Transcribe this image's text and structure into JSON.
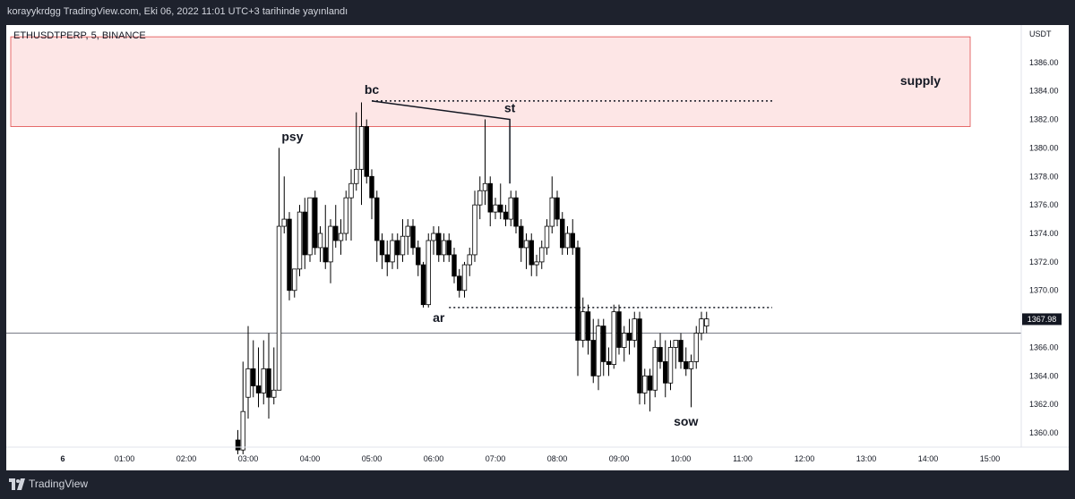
{
  "header": {
    "published_text": "korayykrdgg TradingView.com, Eki 06, 2022 11:01 UTC+3 tarihinde yayınlandı"
  },
  "footer": {
    "brand": "TradingView",
    "logo_icon": "tradingview-logo-icon"
  },
  "colors": {
    "background_dark": "#1e222d",
    "chart_bg": "#ffffff",
    "supply_fill": "#fde6e6",
    "supply_border": "#e04a4a",
    "candle": "#000000"
  },
  "chart_data": {
    "type": "candlestick",
    "symbol_label": "ETHUSDTPERP, 5, BINANCE",
    "currency": "USDT",
    "y_ticks": [
      "1386.00",
      "1384.00",
      "1382.00",
      "1380.00",
      "1378.00",
      "1376.00",
      "1374.00",
      "1372.00",
      "1370.00",
      "1368.00",
      "1366.00",
      "1364.00",
      "1362.00",
      "1360.00"
    ],
    "ylim": [
      1359.0,
      1388.5
    ],
    "x_ticks": [
      "6",
      "01:00",
      "02:00",
      "03:00",
      "04:00",
      "05:00",
      "06:00",
      "07:00",
      "08:00",
      "09:00",
      "10:00",
      "11:00",
      "12:00",
      "13:00",
      "14:00",
      "15:00"
    ],
    "time_scale": {
      "start": "02:50",
      "bar_minutes": 5
    },
    "last_price": "1367.98",
    "candles": [
      {
        "o": 1359.5,
        "h": 1360.2,
        "l": 1358.5,
        "c": 1358.8
      },
      {
        "o": 1358.8,
        "h": 1365.0,
        "l": 1358.5,
        "c": 1361.5
      },
      {
        "o": 1362.5,
        "h": 1367.5,
        "l": 1361.0,
        "c": 1364.5
      },
      {
        "o": 1364.5,
        "h": 1366.5,
        "l": 1362.5,
        "c": 1363.3
      },
      {
        "o": 1363.3,
        "h": 1366.0,
        "l": 1361.8,
        "c": 1362.8
      },
      {
        "o": 1362.8,
        "h": 1366.5,
        "l": 1362.0,
        "c": 1364.5
      },
      {
        "o": 1364.5,
        "h": 1367.0,
        "l": 1361.0,
        "c": 1362.5
      },
      {
        "o": 1362.5,
        "h": 1366.0,
        "l": 1362.0,
        "c": 1363.0
      },
      {
        "o": 1363.0,
        "h": 1380.0,
        "l": 1363.0,
        "c": 1374.5
      },
      {
        "o": 1374.5,
        "h": 1378.0,
        "l": 1374.0,
        "c": 1375.0
      },
      {
        "o": 1375.0,
        "h": 1375.5,
        "l": 1369.3,
        "c": 1370.0
      },
      {
        "o": 1370.0,
        "h": 1371.5,
        "l": 1369.5,
        "c": 1371.5
      },
      {
        "o": 1371.5,
        "h": 1376.0,
        "l": 1371.0,
        "c": 1375.5
      },
      {
        "o": 1375.5,
        "h": 1376.5,
        "l": 1371.5,
        "c": 1372.5
      },
      {
        "o": 1372.5,
        "h": 1376.5,
        "l": 1372.0,
        "c": 1376.5
      },
      {
        "o": 1376.5,
        "h": 1377.0,
        "l": 1372.5,
        "c": 1373.0
      },
      {
        "o": 1373.0,
        "h": 1374.5,
        "l": 1372.0,
        "c": 1374.0
      },
      {
        "o": 1373.0,
        "h": 1376.0,
        "l": 1371.5,
        "c": 1372.0
      },
      {
        "o": 1372.0,
        "h": 1375.0,
        "l": 1370.5,
        "c": 1374.5
      },
      {
        "o": 1374.5,
        "h": 1376.0,
        "l": 1373.0,
        "c": 1373.5
      },
      {
        "o": 1373.5,
        "h": 1375.0,
        "l": 1372.5,
        "c": 1374.0
      },
      {
        "o": 1374.0,
        "h": 1377.0,
        "l": 1373.5,
        "c": 1376.5
      },
      {
        "o": 1376.5,
        "h": 1378.5,
        "l": 1373.5,
        "c": 1377.5
      },
      {
        "o": 1377.5,
        "h": 1382.5,
        "l": 1377.0,
        "c": 1378.5
      },
      {
        "o": 1378.5,
        "h": 1383.2,
        "l": 1376.0,
        "c": 1381.5
      },
      {
        "o": 1381.5,
        "h": 1382.0,
        "l": 1377.5,
        "c": 1378.0
      },
      {
        "o": 1378.0,
        "h": 1378.5,
        "l": 1375.0,
        "c": 1376.5
      },
      {
        "o": 1376.5,
        "h": 1377.0,
        "l": 1372.0,
        "c": 1373.5
      },
      {
        "o": 1373.5,
        "h": 1374.0,
        "l": 1371.5,
        "c": 1372.5
      },
      {
        "o": 1372.5,
        "h": 1373.5,
        "l": 1371.0,
        "c": 1372.0
      },
      {
        "o": 1372.0,
        "h": 1374.0,
        "l": 1371.5,
        "c": 1373.5
      },
      {
        "o": 1373.5,
        "h": 1374.0,
        "l": 1371.5,
        "c": 1372.5
      },
      {
        "o": 1372.5,
        "h": 1375.0,
        "l": 1372.0,
        "c": 1373.8
      },
      {
        "o": 1373.8,
        "h": 1375.0,
        "l": 1372.5,
        "c": 1374.5
      },
      {
        "o": 1374.5,
        "h": 1375.0,
        "l": 1372.5,
        "c": 1373.0
      },
      {
        "o": 1373.0,
        "h": 1373.5,
        "l": 1371.0,
        "c": 1371.8
      },
      {
        "o": 1371.8,
        "h": 1372.0,
        "l": 1368.8,
        "c": 1369.0
      },
      {
        "o": 1369.0,
        "h": 1374.0,
        "l": 1368.8,
        "c": 1373.5
      },
      {
        "o": 1373.5,
        "h": 1374.5,
        "l": 1372.5,
        "c": 1374.0
      },
      {
        "o": 1374.0,
        "h": 1374.5,
        "l": 1372.0,
        "c": 1372.5
      },
      {
        "o": 1372.5,
        "h": 1374.0,
        "l": 1372.0,
        "c": 1373.5
      },
      {
        "o": 1373.5,
        "h": 1374.0,
        "l": 1372.0,
        "c": 1372.5
      },
      {
        "o": 1372.5,
        "h": 1373.0,
        "l": 1370.5,
        "c": 1371.0
      },
      {
        "o": 1371.0,
        "h": 1371.5,
        "l": 1369.5,
        "c": 1370.0
      },
      {
        "o": 1370.0,
        "h": 1372.0,
        "l": 1369.5,
        "c": 1371.8
      },
      {
        "o": 1371.8,
        "h": 1373.0,
        "l": 1371.0,
        "c": 1372.5
      },
      {
        "o": 1372.5,
        "h": 1377.0,
        "l": 1372.0,
        "c": 1376.0
      },
      {
        "o": 1376.0,
        "h": 1378.0,
        "l": 1375.0,
        "c": 1377.0
      },
      {
        "o": 1377.0,
        "h": 1382.0,
        "l": 1376.0,
        "c": 1377.5
      },
      {
        "o": 1377.5,
        "h": 1378.0,
        "l": 1374.5,
        "c": 1375.5
      },
      {
        "o": 1375.5,
        "h": 1376.5,
        "l": 1375.0,
        "c": 1376.0
      },
      {
        "o": 1376.0,
        "h": 1377.5,
        "l": 1375.0,
        "c": 1375.5
      },
      {
        "o": 1375.5,
        "h": 1376.0,
        "l": 1374.5,
        "c": 1375.0
      },
      {
        "o": 1375.0,
        "h": 1377.0,
        "l": 1374.5,
        "c": 1376.5
      },
      {
        "o": 1376.5,
        "h": 1377.0,
        "l": 1374.0,
        "c": 1374.5
      },
      {
        "o": 1374.5,
        "h": 1375.0,
        "l": 1372.0,
        "c": 1373.0
      },
      {
        "o": 1373.0,
        "h": 1374.0,
        "l": 1371.5,
        "c": 1373.5
      },
      {
        "o": 1373.5,
        "h": 1374.0,
        "l": 1371.0,
        "c": 1371.8
      },
      {
        "o": 1371.8,
        "h": 1372.5,
        "l": 1371.0,
        "c": 1372.0
      },
      {
        "o": 1372.0,
        "h": 1373.5,
        "l": 1371.5,
        "c": 1373.0
      },
      {
        "o": 1373.0,
        "h": 1375.0,
        "l": 1372.5,
        "c": 1374.5
      },
      {
        "o": 1374.5,
        "h": 1378.0,
        "l": 1374.0,
        "c": 1376.5
      },
      {
        "o": 1376.5,
        "h": 1377.0,
        "l": 1374.5,
        "c": 1375.0
      },
      {
        "o": 1375.0,
        "h": 1375.5,
        "l": 1372.5,
        "c": 1373.0
      },
      {
        "o": 1373.0,
        "h": 1374.5,
        "l": 1372.5,
        "c": 1374.0
      },
      {
        "o": 1374.0,
        "h": 1375.0,
        "l": 1372.5,
        "c": 1373.0
      },
      {
        "o": 1373.0,
        "h": 1373.5,
        "l": 1364.0,
        "c": 1366.5
      },
      {
        "o": 1366.5,
        "h": 1369.5,
        "l": 1366.0,
        "c": 1368.5
      },
      {
        "o": 1368.5,
        "h": 1369.0,
        "l": 1365.5,
        "c": 1366.5
      },
      {
        "o": 1366.5,
        "h": 1368.0,
        "l": 1363.5,
        "c": 1364.0
      },
      {
        "o": 1364.0,
        "h": 1368.0,
        "l": 1363.0,
        "c": 1367.5
      },
      {
        "o": 1367.5,
        "h": 1368.0,
        "l": 1364.0,
        "c": 1365.0
      },
      {
        "o": 1365.0,
        "h": 1366.0,
        "l": 1364.0,
        "c": 1364.8
      },
      {
        "o": 1364.8,
        "h": 1369.0,
        "l": 1364.5,
        "c": 1368.5
      },
      {
        "o": 1368.5,
        "h": 1369.0,
        "l": 1365.5,
        "c": 1366.0
      },
      {
        "o": 1366.0,
        "h": 1367.5,
        "l": 1365.0,
        "c": 1367.0
      },
      {
        "o": 1367.0,
        "h": 1368.0,
        "l": 1365.5,
        "c": 1366.5
      },
      {
        "o": 1366.5,
        "h": 1368.5,
        "l": 1366.0,
        "c": 1368.0
      },
      {
        "o": 1368.0,
        "h": 1368.5,
        "l": 1362.0,
        "c": 1362.8
      },
      {
        "o": 1362.8,
        "h": 1364.5,
        "l": 1362.0,
        "c": 1364.0
      },
      {
        "o": 1364.0,
        "h": 1364.5,
        "l": 1361.5,
        "c": 1363.0
      },
      {
        "o": 1363.0,
        "h": 1366.5,
        "l": 1362.5,
        "c": 1366.0
      },
      {
        "o": 1366.0,
        "h": 1367.0,
        "l": 1364.5,
        "c": 1365.0
      },
      {
        "o": 1365.0,
        "h": 1366.5,
        "l": 1362.5,
        "c": 1363.5
      },
      {
        "o": 1363.5,
        "h": 1366.5,
        "l": 1363.0,
        "c": 1366.0
      },
      {
        "o": 1366.0,
        "h": 1366.5,
        "l": 1364.5,
        "c": 1366.5
      },
      {
        "o": 1366.5,
        "h": 1367.0,
        "l": 1364.5,
        "c": 1365.0
      },
      {
        "o": 1365.0,
        "h": 1366.0,
        "l": 1364.0,
        "c": 1364.5
      },
      {
        "o": 1364.5,
        "h": 1365.5,
        "l": 1361.8,
        "c": 1365.0
      },
      {
        "o": 1365.0,
        "h": 1367.5,
        "l": 1364.5,
        "c": 1367.0
      },
      {
        "o": 1367.0,
        "h": 1368.5,
        "l": 1366.5,
        "c": 1368.0
      },
      {
        "o": 1367.5,
        "h": 1368.5,
        "l": 1367.0,
        "c": 1368.0
      }
    ],
    "zones": [
      {
        "label": "supply",
        "from": 1381.5,
        "to": 1387.8
      }
    ],
    "annotations": [
      {
        "text": "psy",
        "time": "03:43",
        "price": 1380.0,
        "position": "above"
      },
      {
        "text": "bc",
        "time": "05:00",
        "price": 1383.3,
        "position": "above"
      },
      {
        "text": "st",
        "time": "07:14",
        "price": 1382.0,
        "position": "above"
      },
      {
        "text": "ar",
        "time": "06:05",
        "price": 1368.8,
        "position": "below"
      },
      {
        "text": "sow",
        "time": "10:05",
        "price": 1361.5,
        "position": "below"
      }
    ],
    "horizontal_lines": [
      {
        "price": 1383.3,
        "from": "05:00",
        "to": "11:20",
        "style": "dotted"
      },
      {
        "price": 1368.8,
        "from": "06:15",
        "to": "11:20",
        "style": "dotted"
      },
      {
        "price": 1367.0,
        "style": "solid"
      }
    ],
    "trend_lines": [
      {
        "points": [
          {
            "time": "05:00",
            "price": 1383.3
          },
          {
            "time": "07:14",
            "price": 1382.0
          },
          {
            "time": "07:14",
            "price": 1377.5
          }
        ]
      }
    ]
  }
}
